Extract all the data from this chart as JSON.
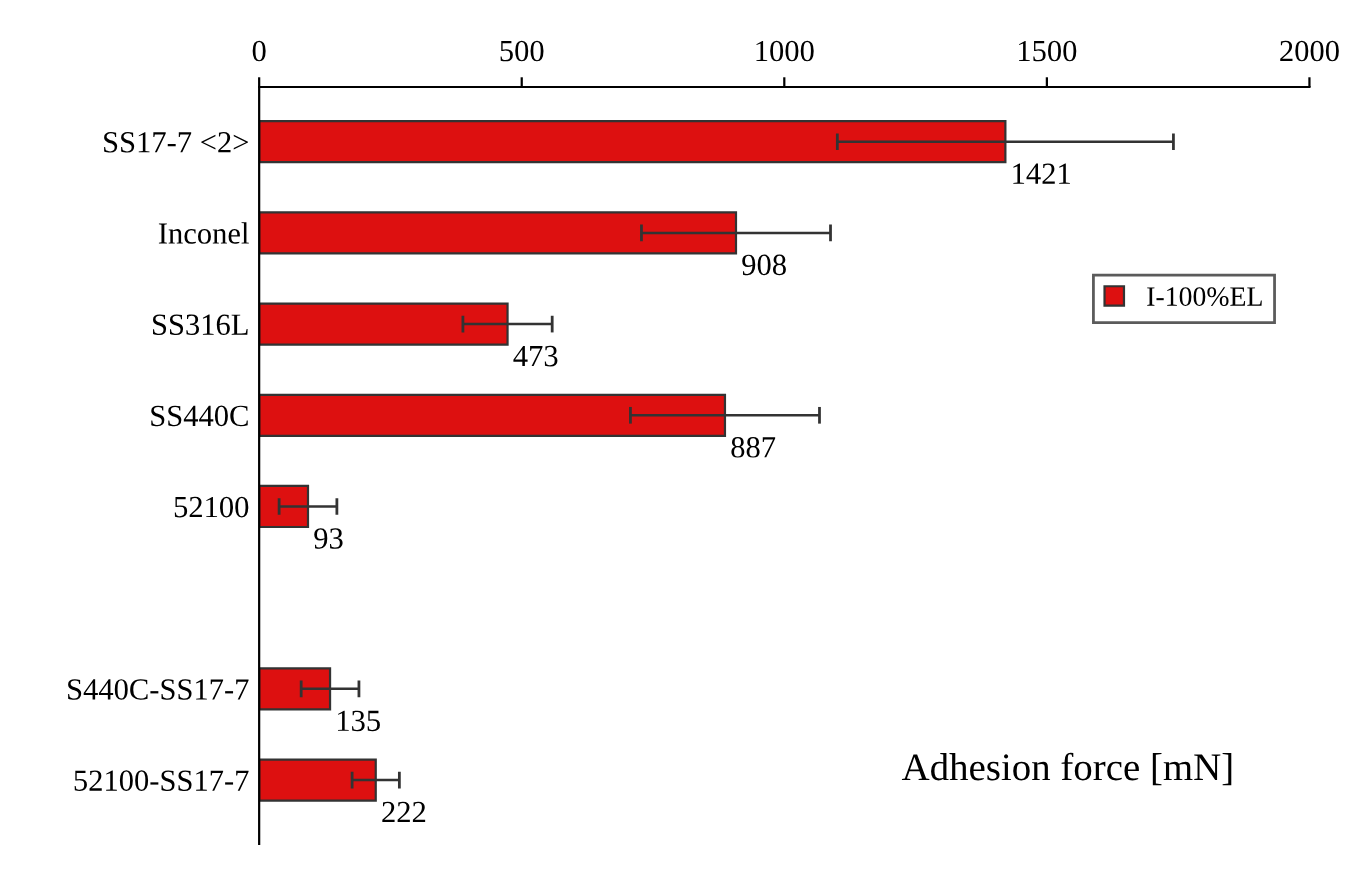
{
  "chart_data": {
    "type": "bar",
    "orientation": "horizontal",
    "categories": [
      "SS17-7 <2>",
      "Inconel",
      "SS316L",
      "SS440C",
      "52100",
      null,
      "S440C-SS17-7",
      "52100-SS17-7"
    ],
    "series": [
      {
        "name": "I-100%EL",
        "color": "#dd1010",
        "values": [
          1421,
          908,
          473,
          887,
          93,
          null,
          135,
          222
        ],
        "errors": [
          320,
          180,
          85,
          180,
          55,
          null,
          55,
          45
        ]
      }
    ],
    "data_labels": true,
    "xlabel": "Adhesion force [mN]",
    "xlim": [
      0,
      2000
    ],
    "xticks": [
      0,
      500,
      1000,
      1500,
      2000
    ],
    "grid": false,
    "legend": "right"
  }
}
